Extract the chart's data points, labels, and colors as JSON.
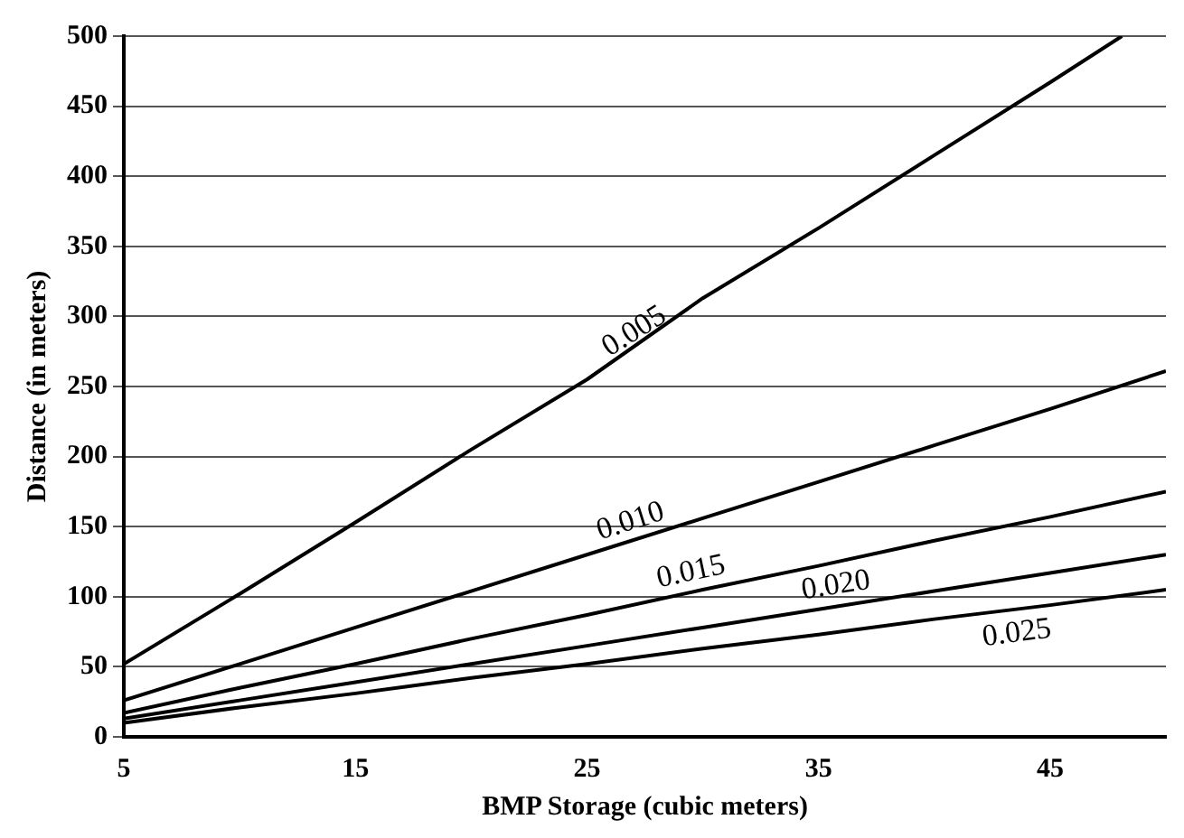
{
  "chart_data": {
    "type": "line",
    "xlabel": "BMP Storage (cubic meters)",
    "ylabel": "Distance (in meters)",
    "xlim": [
      5,
      50
    ],
    "xticks": [
      5,
      15,
      25,
      35,
      45
    ],
    "ylim": [
      0,
      500
    ],
    "yticks": [
      0,
      50,
      100,
      150,
      200,
      250,
      300,
      350,
      400,
      450,
      500
    ],
    "grid": "y",
    "legend": false,
    "marker": "none",
    "line_style": "solid",
    "series": [
      {
        "name": "0.005",
        "color": "#000000",
        "x": [
          5,
          10,
          15,
          20,
          25,
          30,
          35,
          40,
          45,
          48.1
        ],
        "values": [
          52,
          102,
          153,
          205,
          255,
          313,
          363,
          415,
          467,
          500
        ]
      },
      {
        "name": "0.010",
        "color": "#000000",
        "x": [
          5,
          10,
          15,
          20,
          25,
          30,
          35,
          40,
          45,
          50
        ],
        "values": [
          26,
          52,
          78,
          104,
          130,
          156,
          182,
          208,
          234,
          261
        ]
      },
      {
        "name": "0.015",
        "color": "#000000",
        "x": [
          5,
          10,
          15,
          20,
          25,
          30,
          35,
          40,
          45,
          50
        ],
        "values": [
          17,
          35,
          52,
          70,
          87,
          105,
          122,
          140,
          157,
          175
        ]
      },
      {
        "name": "0.020",
        "color": "#000000",
        "x": [
          5,
          10,
          15,
          20,
          25,
          30,
          35,
          40,
          45,
          50
        ],
        "values": [
          13,
          26,
          39,
          52,
          65,
          78,
          91,
          104,
          117,
          130
        ]
      },
      {
        "name": "0.025",
        "color": "#000000",
        "x": [
          5,
          10,
          15,
          20,
          25,
          30,
          35,
          40,
          45,
          50
        ],
        "values": [
          10,
          21,
          31,
          42,
          52,
          63,
          73,
          84,
          94,
          105
        ]
      }
    ]
  }
}
